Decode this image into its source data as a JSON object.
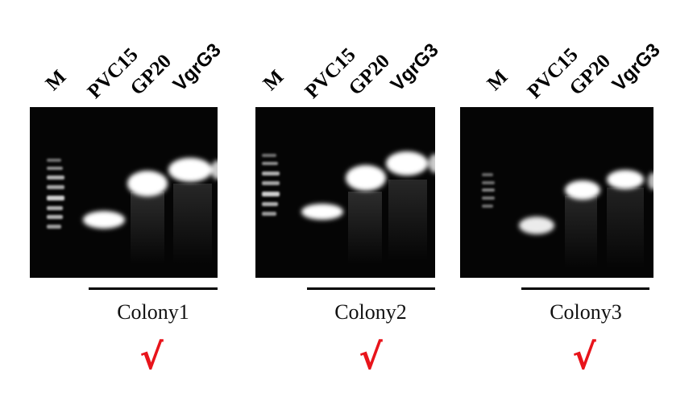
{
  "lane_labels": {
    "marker": "M",
    "lane1": "PVC15",
    "lane2": "GP20",
    "lane3": "VgrG3"
  },
  "panels": [
    {
      "colony_label": "Colony1",
      "mark": "√"
    },
    {
      "colony_label": "Colony2",
      "mark": "√"
    },
    {
      "colony_label": "Colony3",
      "mark": "√"
    }
  ],
  "colors": {
    "gel_background": "#050505",
    "band": "#ffffff",
    "check_mark": "#e8141b"
  }
}
